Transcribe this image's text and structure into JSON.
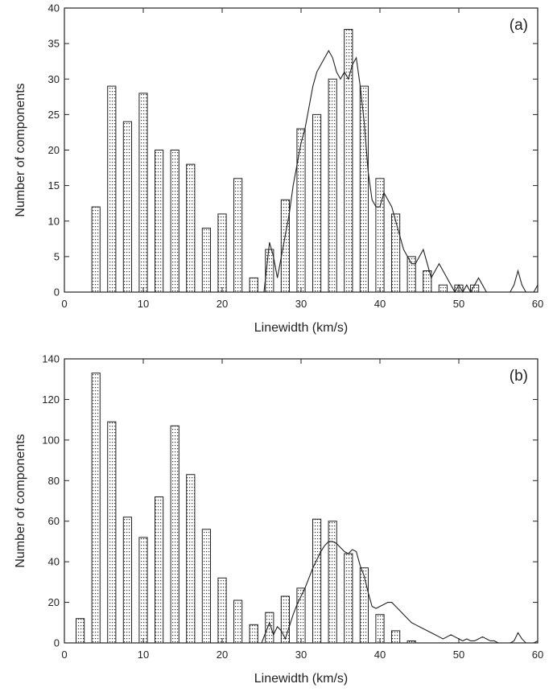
{
  "chart_data": [
    {
      "type": "bar",
      "panel_label": "(a)",
      "title": "",
      "xlabel": "Linewidth (km/s)",
      "ylabel": "Number of components",
      "xlim": [
        0,
        60
      ],
      "ylim": [
        0,
        40
      ],
      "xticks": [
        0,
        10,
        20,
        30,
        40,
        50,
        60
      ],
      "yticks": [
        0,
        5,
        10,
        15,
        20,
        25,
        30,
        35,
        40
      ],
      "grid": false,
      "bars": {
        "x": [
          4,
          6,
          8,
          10,
          12,
          14,
          16,
          18,
          20,
          22,
          24,
          26,
          28,
          30,
          32,
          34,
          36,
          38,
          40,
          42,
          44,
          46,
          48,
          50,
          52
        ],
        "values": [
          12,
          29,
          24,
          28,
          20,
          20,
          18,
          9,
          11,
          16,
          2,
          6,
          13,
          23,
          25,
          30,
          37,
          29,
          16,
          11,
          5,
          3,
          1,
          1,
          1
        ]
      },
      "line": {
        "x": [
          25.3,
          26,
          26.5,
          27,
          27.5,
          28,
          28.5,
          29,
          29.5,
          30,
          30.5,
          31,
          31.5,
          32,
          32.5,
          33,
          33.5,
          34,
          34.5,
          35,
          35.5,
          36,
          36.5,
          37,
          37.5,
          38,
          38.5,
          39,
          39.5,
          40,
          40.5,
          41,
          41.5,
          42,
          42.5,
          43,
          43.5,
          44,
          44.5,
          45,
          45.5,
          46,
          46.5,
          47,
          47.5,
          48,
          48.5,
          49,
          49.5,
          50,
          50.5,
          51,
          51.5,
          52,
          52.5,
          53,
          53.5,
          54,
          54.5,
          55,
          55.5,
          56,
          56.5,
          57,
          57.5,
          58,
          58.5,
          59,
          59.5,
          60
        ],
        "values": [
          0,
          7,
          5,
          2,
          5,
          8,
          11,
          15,
          18,
          21,
          23,
          26,
          29,
          31,
          32,
          33,
          34,
          33,
          31,
          30,
          31,
          30,
          32,
          33,
          29,
          24,
          17,
          13,
          12,
          12,
          14,
          13,
          12,
          10,
          8,
          6,
          5,
          4,
          4,
          5,
          6,
          4,
          2,
          3,
          4,
          3,
          2,
          1,
          0,
          1,
          0,
          1,
          0,
          1,
          2,
          1,
          0,
          0,
          0,
          0,
          0,
          0,
          0,
          1,
          3,
          1,
          0,
          0,
          0,
          1
        ]
      }
    },
    {
      "type": "bar",
      "panel_label": "(b)",
      "title": "",
      "xlabel": "Linewidth (km/s)",
      "ylabel": "Number of components",
      "xlim": [
        0,
        60
      ],
      "ylim": [
        0,
        140
      ],
      "xticks": [
        0,
        10,
        20,
        30,
        40,
        50,
        60
      ],
      "yticks": [
        0,
        20,
        40,
        60,
        80,
        100,
        120,
        140
      ],
      "grid": false,
      "bars": {
        "x": [
          2,
          4,
          6,
          8,
          10,
          12,
          14,
          16,
          18,
          20,
          22,
          24,
          26,
          28,
          30,
          32,
          34,
          36,
          38,
          40,
          42,
          44
        ],
        "values": [
          12,
          133,
          109,
          62,
          52,
          72,
          107,
          83,
          56,
          32,
          21,
          9,
          15,
          23,
          27,
          61,
          60,
          44,
          37,
          14,
          6,
          1
        ]
      },
      "line": {
        "x": [
          25,
          26,
          26.5,
          27,
          27.5,
          28,
          28.5,
          29,
          29.5,
          30,
          30.5,
          31,
          31.5,
          32,
          32.5,
          33,
          33.5,
          34,
          34.5,
          35,
          35.5,
          36,
          36.5,
          37,
          37.5,
          38,
          38.5,
          39,
          39.5,
          40,
          40.5,
          41,
          41.5,
          42,
          42.5,
          43,
          43.5,
          44,
          44.5,
          45,
          45.5,
          46,
          46.5,
          47,
          47.5,
          48,
          48.5,
          49,
          49.5,
          50,
          50.5,
          51,
          51.5,
          52,
          52.5,
          53,
          53.5,
          54,
          54.5,
          55,
          55.5,
          56,
          56.5,
          57,
          57.5,
          58,
          58.5,
          59,
          59.5,
          60
        ],
        "values": [
          0,
          10,
          4,
          8,
          6,
          2,
          8,
          14,
          19,
          23,
          27,
          32,
          37,
          41,
          45,
          48,
          50,
          50,
          49,
          47,
          45,
          44,
          46,
          45,
          38,
          33,
          25,
          18,
          17,
          18,
          19,
          20,
          20,
          18,
          16,
          14,
          12,
          10,
          9,
          8,
          7,
          6,
          5,
          4,
          3,
          2,
          3,
          4,
          3,
          2,
          1,
          2,
          1,
          1,
          2,
          3,
          2,
          1,
          1,
          0,
          0,
          0,
          0,
          1,
          5,
          2,
          0,
          0,
          0,
          1
        ]
      }
    }
  ]
}
